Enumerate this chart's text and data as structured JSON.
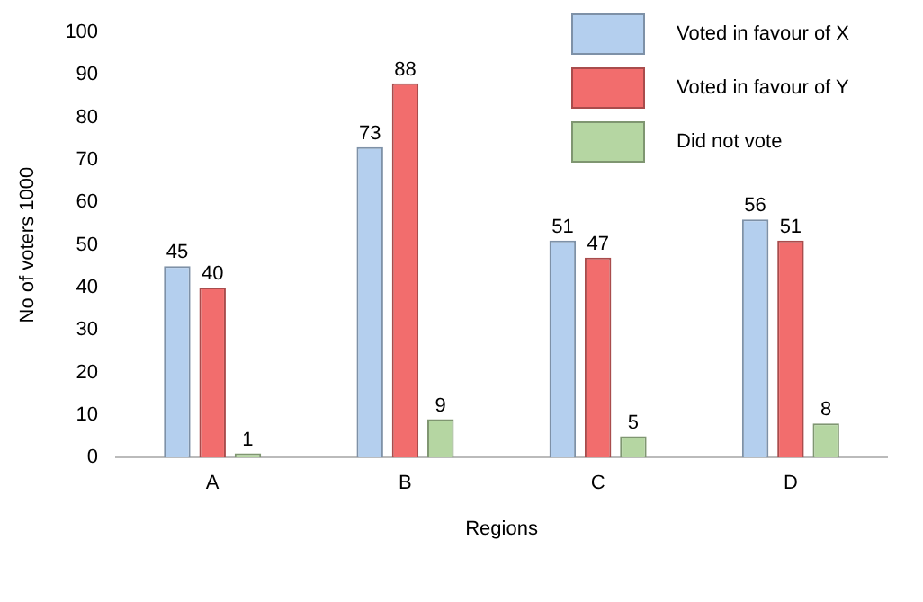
{
  "chart_data": {
    "type": "bar",
    "xlabel": "Regions",
    "ylabel": "No of voters 1000",
    "categories": [
      "A",
      "B",
      "C",
      "D"
    ],
    "series": [
      {
        "name": "Voted in favour of X",
        "color": "#b4cfee",
        "values": [
          45,
          73,
          51,
          56
        ]
      },
      {
        "name": "Voted in favour of Y",
        "color": "#f26d6d",
        "values": [
          40,
          88,
          47,
          51
        ]
      },
      {
        "name": "Did not vote",
        "color": "#b5d6a2",
        "values": [
          1,
          9,
          5,
          8
        ]
      }
    ],
    "ylim": [
      0,
      100
    ],
    "yticks": [
      0,
      10,
      20,
      30,
      40,
      50,
      60,
      70,
      80,
      90,
      100
    ],
    "grid": false,
    "legend": "top right",
    "data_labels": true
  }
}
